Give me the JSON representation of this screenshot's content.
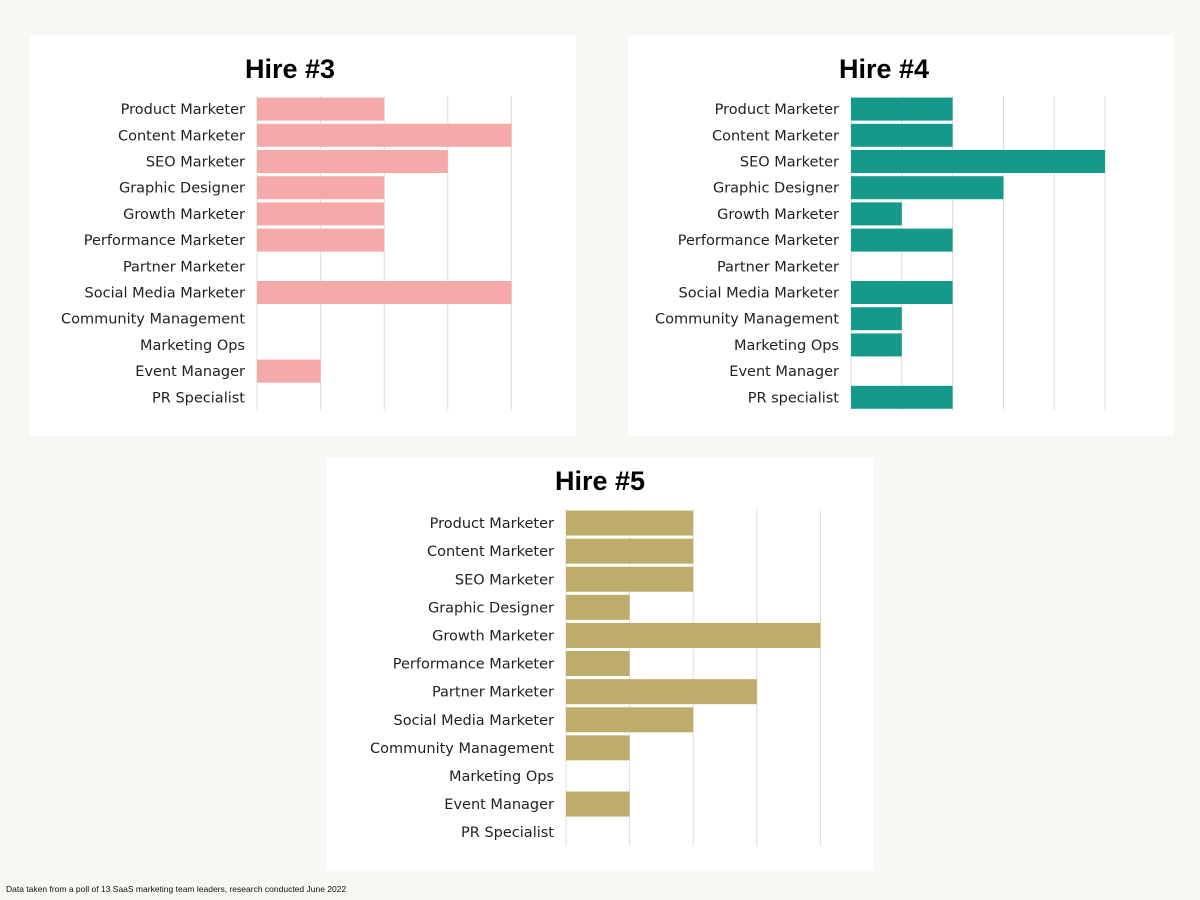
{
  "chart_data": [
    {
      "type": "bar",
      "orientation": "horizontal",
      "title": "Hire #3",
      "color": "#f5aaa9",
      "categories": [
        "Product Marketer",
        "Content Marketer",
        "SEO Marketer",
        "Graphic Designer",
        "Growth Marketer",
        "Performance Marketer",
        "Partner Marketer",
        "Social Media Marketer",
        "Community Management",
        "Marketing Ops",
        "Event Manager",
        "PR Specialist"
      ],
      "values": [
        2,
        4,
        3,
        2,
        2,
        2,
        0,
        4,
        0,
        0,
        1,
        0
      ],
      "xlim": [
        0,
        4
      ],
      "grid": true
    },
    {
      "type": "bar",
      "orientation": "horizontal",
      "title": "Hire #4",
      "color": "#14998a",
      "categories": [
        "Product Marketer",
        "Content Marketer",
        "SEO Marketer",
        "Graphic Designer",
        "Growth Marketer",
        "Performance Marketer",
        "Partner Marketer",
        "Social Media Marketer",
        "Community Management",
        "Marketing Ops",
        "Event Manager",
        "PR specialist"
      ],
      "values": [
        2,
        2,
        5,
        3,
        1,
        2,
        0,
        2,
        1,
        1,
        0,
        2
      ],
      "xlim": [
        0,
        5
      ],
      "grid": true
    },
    {
      "type": "bar",
      "orientation": "horizontal",
      "title": "Hire #5",
      "color": "#bdac6a",
      "categories": [
        "Product Marketer",
        "Content Marketer",
        "SEO Marketer",
        "Graphic Designer",
        "Growth Marketer",
        "Performance Marketer",
        "Partner Marketer",
        "Social Media Marketer",
        "Community Management",
        "Marketing Ops",
        "Event Manager",
        "PR Specialist"
      ],
      "values": [
        2,
        2,
        2,
        1,
        4,
        1,
        3,
        2,
        1,
        0,
        1,
        0
      ],
      "xlim": [
        0,
        4
      ],
      "grid": true
    }
  ],
  "footnote": "Data taken from a poll of 13 SaaS marketing team leaders, research conducted June 2022"
}
